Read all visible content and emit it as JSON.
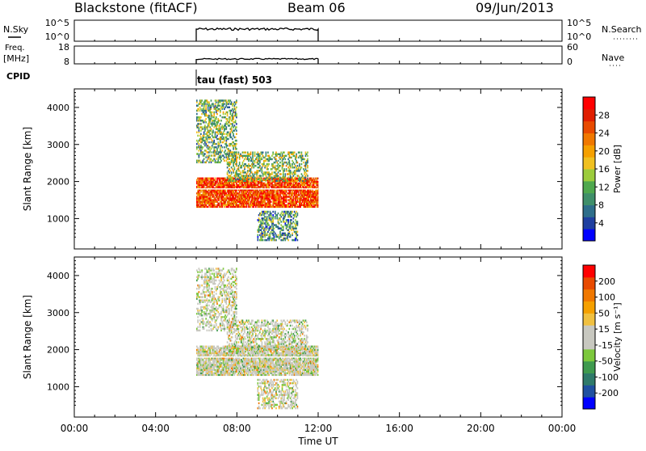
{
  "header": {
    "title": "Blackstone (fitACF)",
    "beam": "Beam 06",
    "date": "09/Jun/2013"
  },
  "panels": {
    "nsky_label": "N.Sky",
    "nsearch_label": "N.Search",
    "nsky_ticks": [
      "10^5",
      "10^0"
    ],
    "freq_label_line1": "Freq.",
    "freq_label_line2": "[MHz]",
    "freq_ticks": [
      "18",
      "8"
    ],
    "nave_label": "Nave",
    "nave_ticks": [
      "60",
      "0"
    ],
    "cpid_label": "CPID",
    "cpid_text": "tau (fast) 503"
  },
  "colorbars": {
    "power": {
      "label": "Power [dB]",
      "ticks": [
        "28",
        "24",
        "20",
        "16",
        "12",
        "8",
        "4"
      ],
      "colors": [
        "#0000ff",
        "#1f3fa0",
        "#2e6e8a",
        "#3f8f6a",
        "#4fa84e",
        "#9ccc3c",
        "#f0c020",
        "#f5a000",
        "#f07800",
        "#e84a00",
        "#e01e00",
        "#ff0000"
      ]
    },
    "velocity": {
      "label": "Velocity [m s⁻¹]",
      "ticks": [
        "200",
        "100",
        "50",
        "15",
        "-15",
        "-50",
        "-100",
        "-200"
      ],
      "colors": [
        "#0000ff",
        "#1f50a0",
        "#2f7a6a",
        "#3f9a4e",
        "#7cc83c",
        "#c8c8c0",
        "#c8c8c0",
        "#f0c040",
        "#f5a000",
        "#f07800",
        "#e84a00",
        "#ff0000"
      ]
    }
  },
  "chart_data": [
    {
      "type": "heatmap",
      "title": "",
      "xlabel": "Time UT",
      "ylabel": "Slant Range [km]",
      "xlim": [
        "00:00",
        "24:00"
      ],
      "ylim": [
        180,
        4500
      ],
      "x_ticks": [
        "00:00",
        "04:00",
        "08:00",
        "12:00",
        "16:00",
        "20:00",
        "00:00"
      ],
      "y_ticks": [
        1000,
        2000,
        3000,
        4000
      ],
      "quantity": "Power [dB]",
      "data_time_range": [
        "06:00",
        "12:00"
      ],
      "features": [
        {
          "time": [
            "06:00",
            "12:00"
          ],
          "range_km": [
            1300,
            2100
          ],
          "value_db": 26
        },
        {
          "time": [
            "07:30",
            "11:30"
          ],
          "range_km": [
            2000,
            2800
          ],
          "value_db": 14
        },
        {
          "time": [
            "06:00",
            "08:00"
          ],
          "range_km": [
            2500,
            4200
          ],
          "value_db": 12
        },
        {
          "time": [
            "09:00",
            "11:00"
          ],
          "range_km": [
            400,
            1200
          ],
          "value_db": 10
        }
      ]
    },
    {
      "type": "heatmap",
      "title": "",
      "xlabel": "Time UT",
      "ylabel": "Slant Range [km]",
      "xlim": [
        "00:00",
        "24:00"
      ],
      "ylim": [
        180,
        4500
      ],
      "x_ticks": [
        "00:00",
        "04:00",
        "08:00",
        "12:00",
        "16:00",
        "20:00",
        "00:00"
      ],
      "y_ticks": [
        1000,
        2000,
        3000,
        4000
      ],
      "quantity": "Velocity [m s⁻¹]",
      "data_time_range": [
        "06:00",
        "12:00"
      ],
      "features": [
        {
          "time": [
            "06:00",
            "12:00"
          ],
          "range_km": [
            1300,
            2100
          ],
          "value_ms": 0
        },
        {
          "time": [
            "07:30",
            "11:30"
          ],
          "range_km": [
            2000,
            2800
          ],
          "value_ms": -20
        },
        {
          "time": [
            "06:00",
            "08:00"
          ],
          "range_km": [
            2500,
            4200
          ],
          "value_ms": 30
        },
        {
          "time": [
            "09:00",
            "11:00"
          ],
          "range_km": [
            400,
            1200
          ],
          "value_ms": 0
        }
      ]
    }
  ]
}
